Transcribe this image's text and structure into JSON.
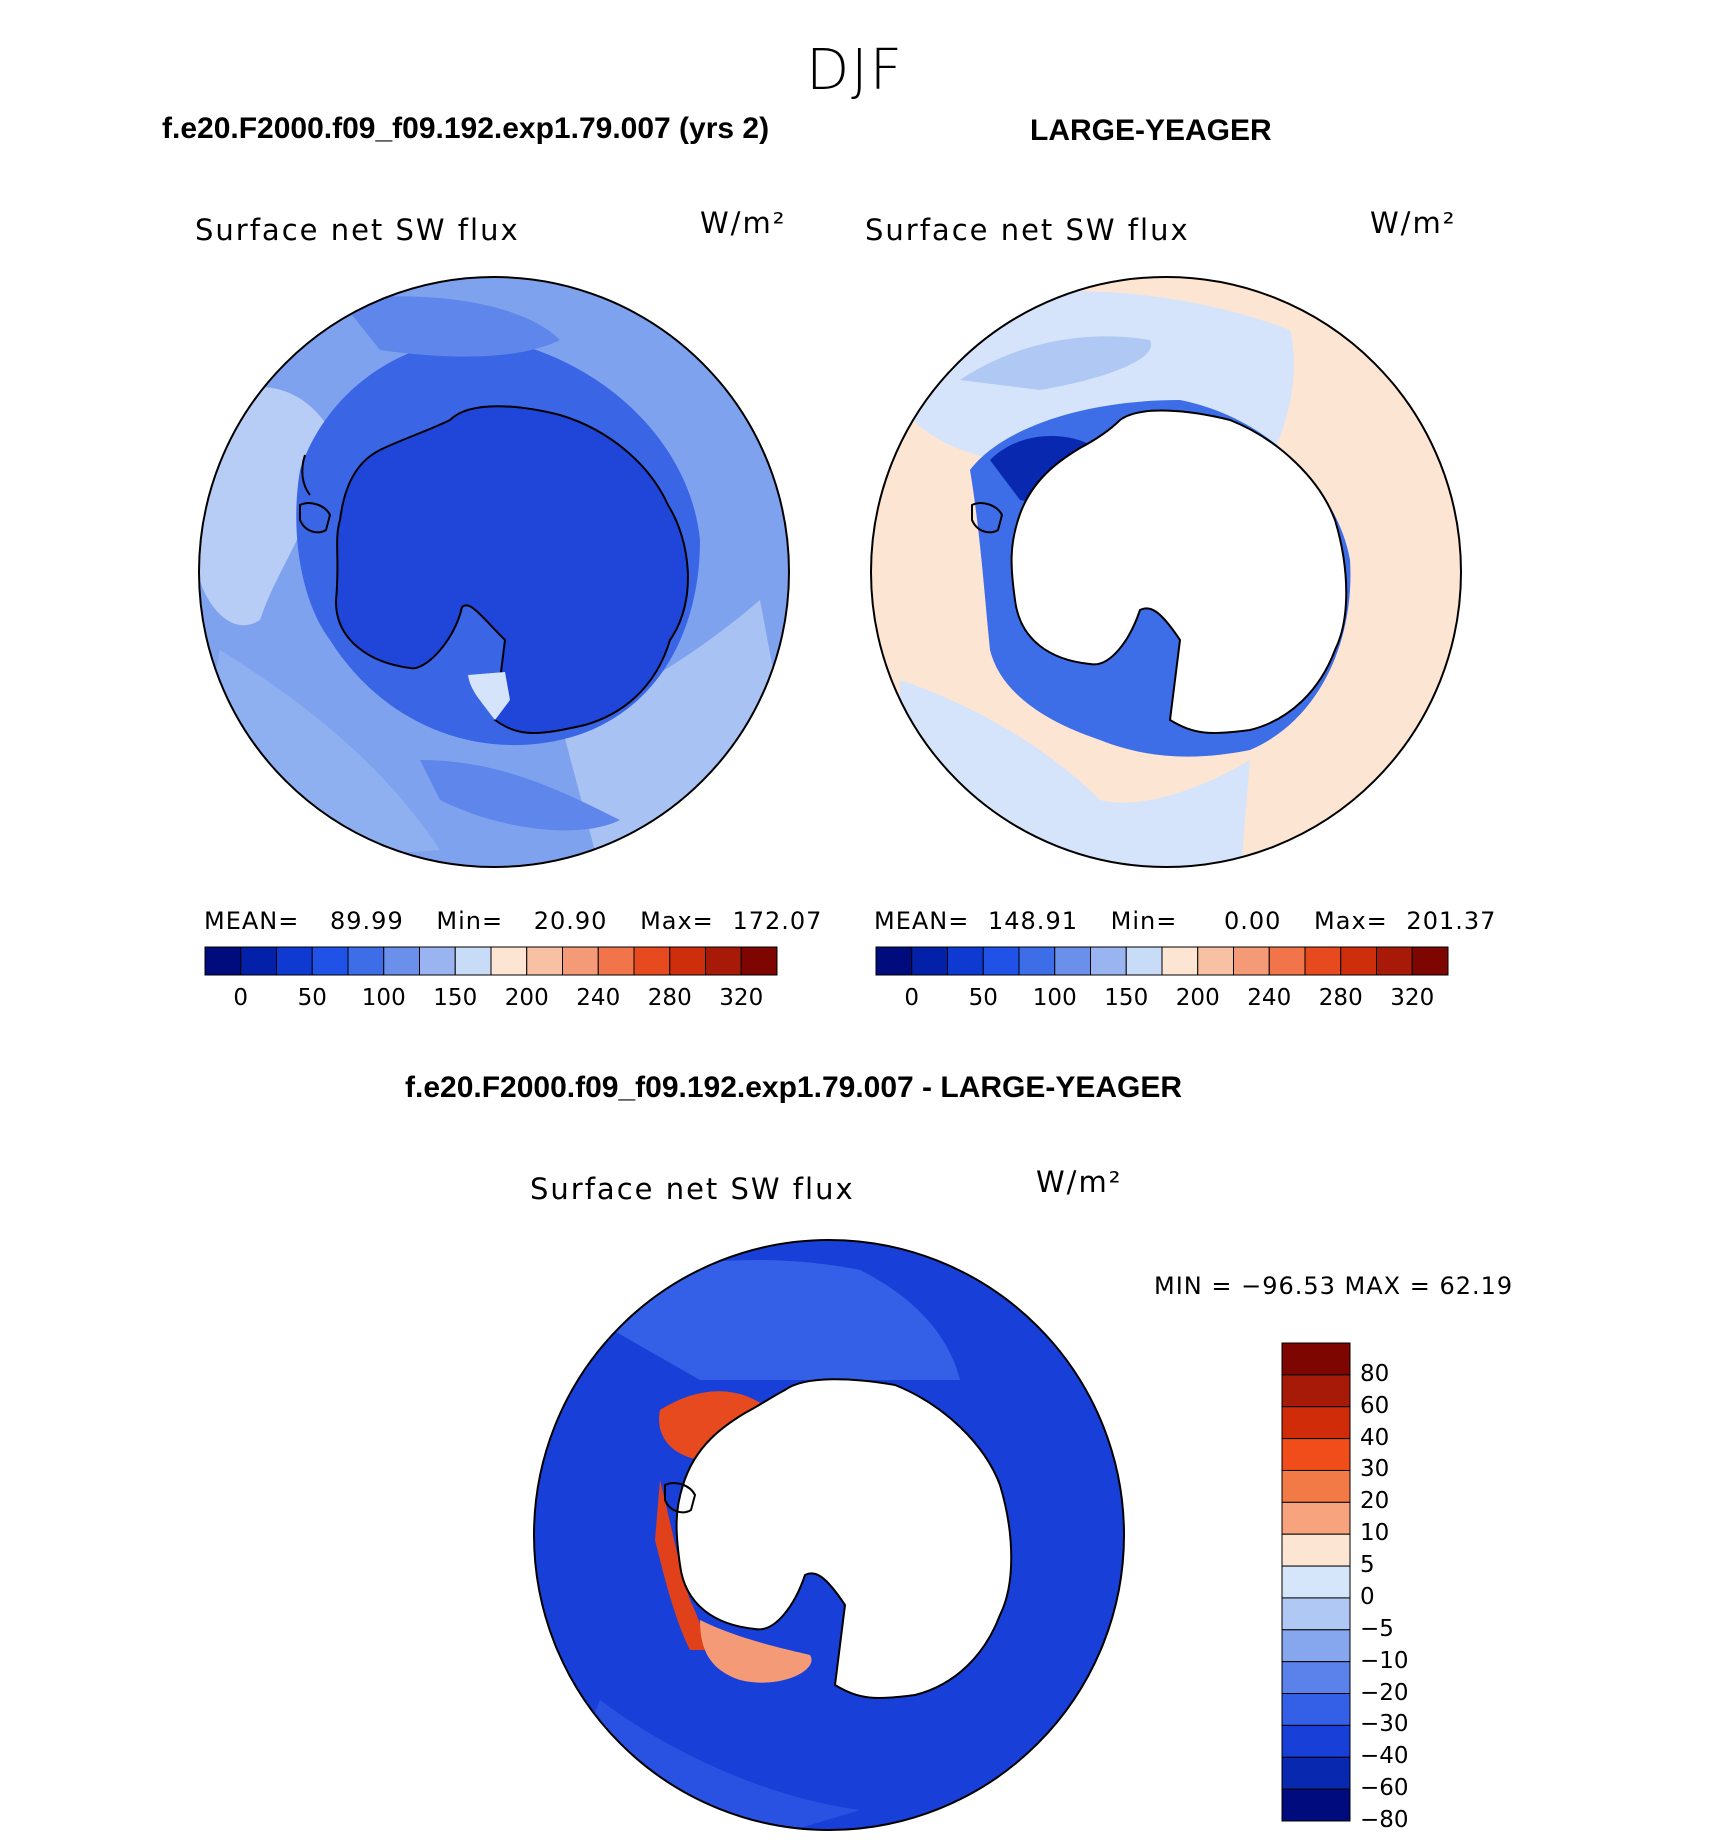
{
  "season": "DJF",
  "panels": {
    "model": {
      "title": "f.e20.F2000.f09_f09.192.exp1.79.007 (yrs 2)",
      "variable": "Surface net SW flux",
      "units": "W/m²",
      "mean_label": "MEAN=",
      "mean_value": "89.99",
      "min_label": "Min=",
      "min_value": "20.90",
      "max_label": "Max=",
      "max_value": "172.07"
    },
    "obs": {
      "title": "LARGE-YEAGER",
      "variable": "Surface net SW flux",
      "units": "W/m²",
      "mean_label": "MEAN=",
      "mean_value": "148.91",
      "min_label": "Min=",
      "min_value": "0.00",
      "max_label": "Max=",
      "max_value": "201.37"
    },
    "diff": {
      "title": "f.e20.F2000.f09_f09.192.exp1.79.007 - LARGE-YEAGER",
      "variable": "Surface net SW flux",
      "units": "W/m²",
      "minmax_text": "MIN = −96.53 MAX =   62.19"
    }
  },
  "colorbars": {
    "abs": {
      "colors": [
        "#000c7d",
        "#0320a8",
        "#0f3ad2",
        "#2052e8",
        "#3d6ee8",
        "#6a90ec",
        "#9ab4f2",
        "#c8dcf8",
        "#fde5d3",
        "#f8c1a3",
        "#f59a76",
        "#f1744a",
        "#e84a20",
        "#ce2e0c",
        "#a81a08",
        "#7d0600"
      ],
      "tick_labels": [
        "0",
        "50",
        "100",
        "150",
        "200",
        "240",
        "280",
        "320"
      ]
    },
    "diff": {
      "colors": [
        "#7d0600",
        "#a81a08",
        "#d02c0a",
        "#f04d1a",
        "#f27a46",
        "#f7a37e",
        "#fde5d3",
        "#d5e6fa",
        "#b0c8f4",
        "#86a6ee",
        "#5a82ea",
        "#3360e6",
        "#1840d8",
        "#0828b0",
        "#000c7d"
      ],
      "tick_labels": [
        "80",
        "60",
        "40",
        "30",
        "20",
        "10",
        "5",
        "0",
        "−5",
        "−10",
        "−20",
        "−30",
        "−40",
        "−60",
        "−80"
      ]
    }
  }
}
